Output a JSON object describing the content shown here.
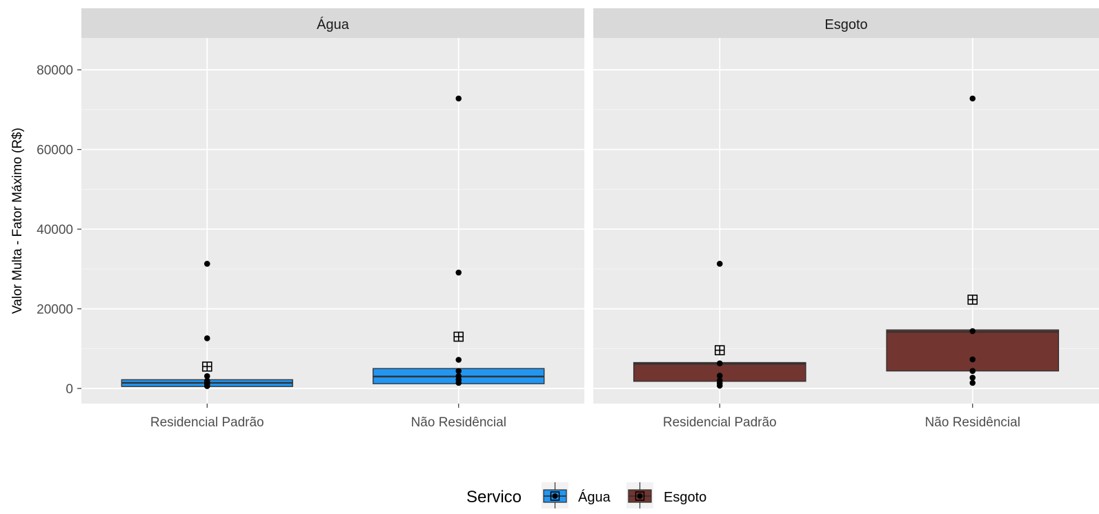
{
  "chart_data": {
    "type": "box",
    "ylabel": "Valor Multa - Fator Máximo (R$)",
    "xlabel": "",
    "ylim": [
      -3800,
      88000
    ],
    "yticks": [
      0,
      20000,
      40000,
      60000,
      80000
    ],
    "ytick_labels": [
      "0",
      "20000",
      "40000",
      "60000",
      "80000"
    ],
    "categories": [
      "Residencial Padrão",
      "Não Residêncial"
    ],
    "grid": true,
    "legend": {
      "title": "Servico",
      "position": "bottom"
    },
    "colors": {
      "Água": "#2196f3",
      "Esgoto": "#733530"
    },
    "panels": [
      {
        "strip": "Água",
        "series": "Água",
        "boxes": [
          {
            "category": "Residencial Padrão",
            "q1": 500,
            "median": 1400,
            "q3": 2200,
            "mean": 5500,
            "points": [
              31300,
              12600,
              3100,
              1900,
              1400,
              1000,
              600
            ]
          },
          {
            "category": "Não Residêncial",
            "q1": 1200,
            "median": 3000,
            "q3": 5000,
            "mean": 13000,
            "points": [
              72800,
              29100,
              7200,
              4400,
              3100,
              2200,
              1400
            ]
          }
        ]
      },
      {
        "strip": "Esgoto",
        "series": "Esgoto",
        "boxes": [
          {
            "category": "Residencial Padrão",
            "q1": 1800,
            "median": 6200,
            "q3": 6500,
            "mean": 9600,
            "points": [
              31300,
              6300,
              3200,
              2000,
              1300,
              700
            ]
          },
          {
            "category": "Não Residêncial",
            "q1": 4400,
            "median": 14200,
            "q3": 14700,
            "mean": 22300,
            "points": [
              72800,
              14400,
              7300,
              4400,
              2700,
              1400
            ]
          }
        ]
      }
    ]
  }
}
